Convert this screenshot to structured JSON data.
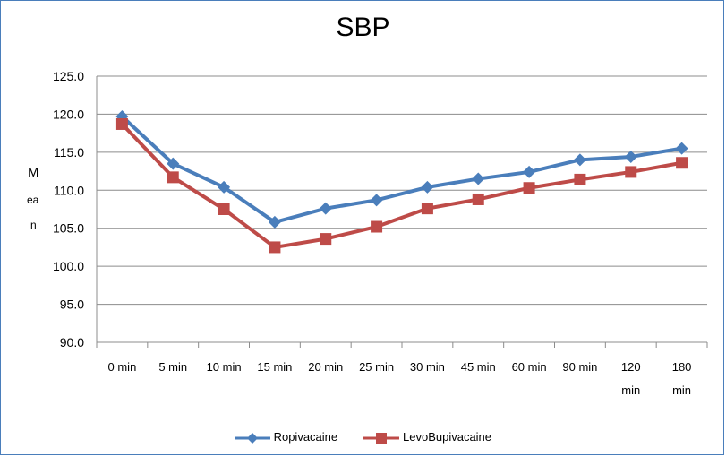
{
  "chart_data": {
    "type": "line",
    "title": "SBP",
    "ylabel_lines": [
      "M",
      "ea",
      "n"
    ],
    "xlabel": "",
    "categories": [
      "0 min",
      "5 min",
      "10 min",
      "15 min",
      "20 min",
      "25 min",
      "30 min",
      "45 min",
      "60 min",
      "90 min",
      "120 min",
      "180 min"
    ],
    "category_label_lines": [
      [
        "0 min"
      ],
      [
        "5 min"
      ],
      [
        "10 min"
      ],
      [
        "15 min"
      ],
      [
        "20 min"
      ],
      [
        "25 min"
      ],
      [
        "30 min"
      ],
      [
        "45 min"
      ],
      [
        "60 min"
      ],
      [
        "90 min"
      ],
      [
        "120",
        "min"
      ],
      [
        "180",
        "min"
      ]
    ],
    "ylim": [
      90.0,
      125.0
    ],
    "yticks": [
      "90.0",
      "95.0",
      "100.0",
      "105.0",
      "110.0",
      "115.0",
      "120.0",
      "125.0"
    ],
    "grid": true,
    "legend_position": "bottom",
    "series": [
      {
        "name": "Ropivacaine",
        "color": "#4a7ebb",
        "marker": "diamond",
        "values": [
          119.7,
          113.5,
          110.4,
          105.8,
          107.6,
          108.7,
          110.4,
          111.5,
          112.4,
          114.0,
          114.4,
          115.5
        ]
      },
      {
        "name": "LevoBupivacaine",
        "color": "#be4b48",
        "marker": "square",
        "values": [
          118.7,
          111.7,
          107.5,
          102.5,
          103.6,
          105.2,
          107.6,
          108.8,
          110.3,
          111.4,
          112.4,
          113.6
        ]
      }
    ]
  }
}
